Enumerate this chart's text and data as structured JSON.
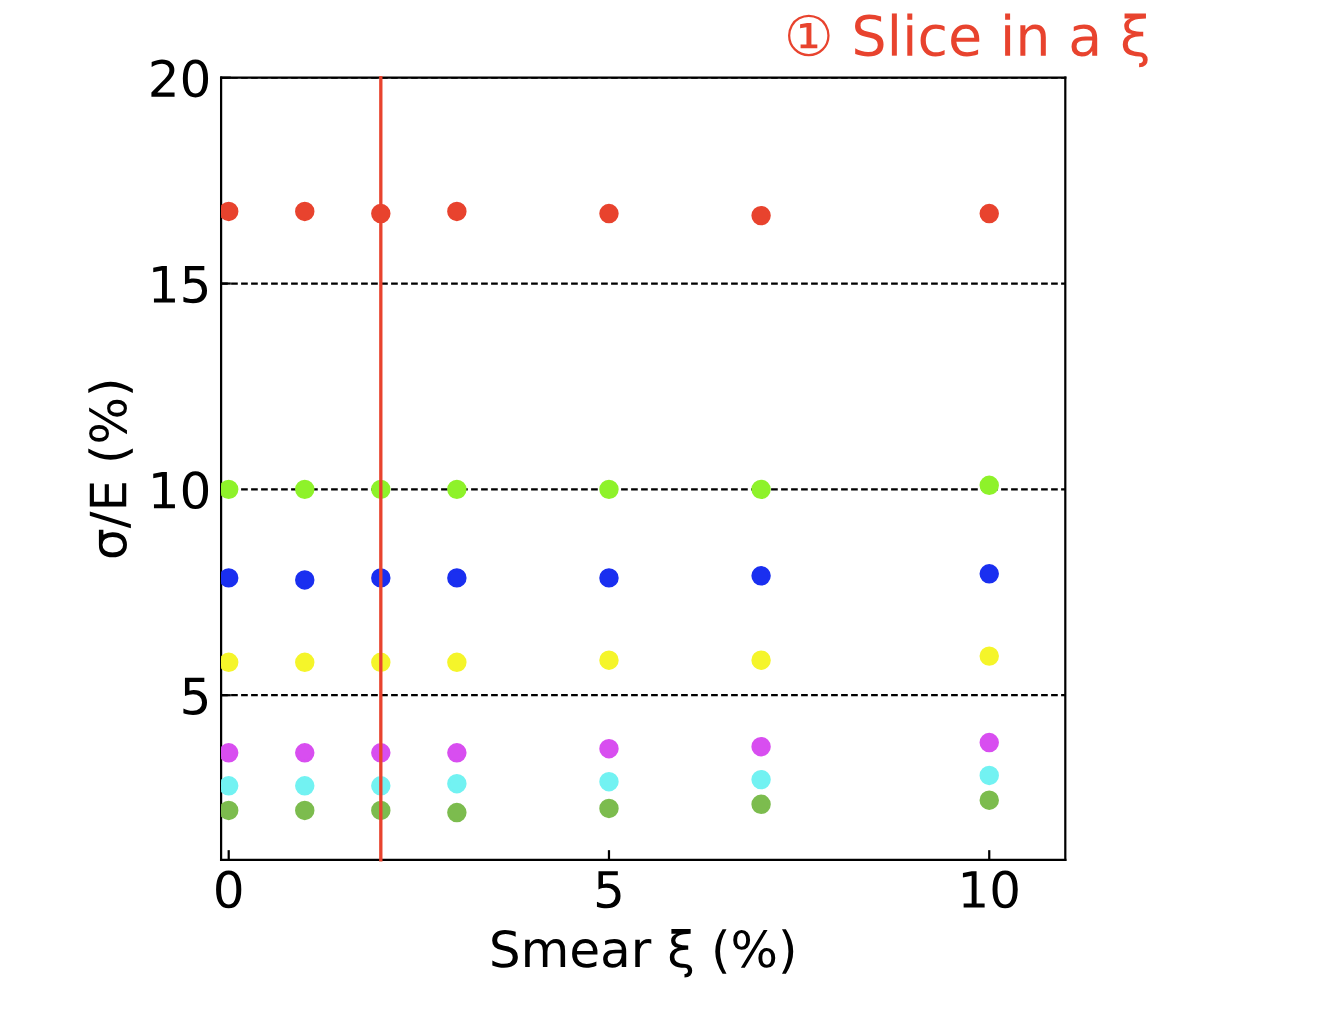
{
  "chart_data": {
    "type": "scatter",
    "xlabel": "Smear ξ (%)",
    "ylabel": "σ/E (%)",
    "x": [
      0,
      1,
      2,
      3,
      5,
      7,
      10
    ],
    "series": [
      {
        "color": "#e8432e",
        "values": [
          16.75,
          16.75,
          16.7,
          16.75,
          16.7,
          16.65,
          16.7
        ]
      },
      {
        "color": "#8ef22a",
        "values": [
          10.0,
          10.0,
          10.0,
          10.0,
          10.0,
          10.0,
          10.1
        ]
      },
      {
        "color": "#1a2ff0",
        "values": [
          7.85,
          7.8,
          7.85,
          7.85,
          7.85,
          7.9,
          7.95
        ]
      },
      {
        "color": "#f5f52a",
        "values": [
          5.8,
          5.8,
          5.8,
          5.8,
          5.85,
          5.85,
          5.95
        ]
      },
      {
        "color": "#d84ef0",
        "values": [
          3.6,
          3.6,
          3.6,
          3.6,
          3.7,
          3.75,
          3.85
        ]
      },
      {
        "color": "#72f2f2",
        "values": [
          2.8,
          2.8,
          2.8,
          2.85,
          2.9,
          2.95,
          3.05
        ]
      },
      {
        "color": "#7cbc4e",
        "values": [
          2.2,
          2.2,
          2.2,
          2.15,
          2.25,
          2.35,
          2.45
        ]
      }
    ],
    "xlim": [
      -0.1,
      11
    ],
    "ylim": [
      1,
      20
    ],
    "xticks": [
      0,
      5,
      10
    ],
    "yticks": [
      5,
      10,
      15,
      20
    ],
    "grid": "y",
    "marker": "circle",
    "ref_lines": [
      {
        "axis": "x",
        "value": 2,
        "color": "#e8432e"
      }
    ],
    "annotations": [
      "① Slice in a ξ"
    ]
  }
}
